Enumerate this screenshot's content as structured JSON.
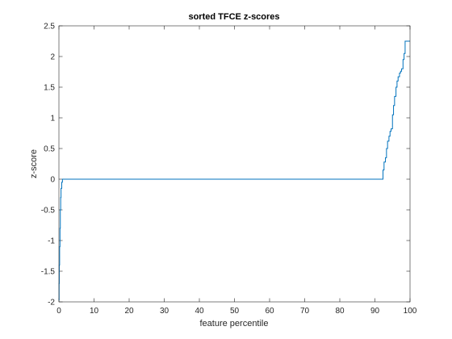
{
  "chart_data": {
    "type": "line",
    "title": "sorted TFCE z-scores",
    "xlabel": "feature percentile",
    "ylabel": "z-score",
    "xlim": [
      0,
      100
    ],
    "ylim": [
      -2,
      2.5
    ],
    "xticks": [
      0,
      10,
      20,
      30,
      40,
      50,
      60,
      70,
      80,
      90,
      100
    ],
    "yticks": [
      -2,
      -1.5,
      -1,
      -0.5,
      0,
      0.5,
      1,
      1.5,
      2,
      2.5
    ],
    "xtick_labels": [
      "0",
      "10",
      "20",
      "30",
      "40",
      "50",
      "60",
      "70",
      "80",
      "90",
      "100"
    ],
    "ytick_labels": [
      "-2",
      "-1.5",
      "-1",
      "-0.5",
      "0",
      "0.5",
      "1",
      "1.5",
      "2",
      "2.5"
    ],
    "grid": false,
    "series": [
      {
        "color": "#0072BD",
        "x": [
          0,
          0.05,
          0.1,
          0.2,
          0.3,
          0.4,
          0.5,
          0.6,
          0.8,
          1.0,
          92.0,
          92.3,
          92.6,
          93.0,
          93.3,
          93.6,
          94.0,
          94.3,
          94.6,
          95.0,
          95.3,
          95.6,
          96.0,
          96.3,
          96.6,
          97.0,
          97.3,
          97.6,
          98.0,
          98.3,
          98.6,
          99.0,
          99.5,
          100
        ],
        "y": [
          -1.97,
          -1.7,
          -1.4,
          -1.1,
          -0.8,
          -0.5,
          -0.3,
          -0.15,
          -0.05,
          0,
          0,
          0.15,
          0.28,
          0.35,
          0.5,
          0.62,
          0.7,
          0.78,
          0.82,
          1.05,
          1.2,
          1.35,
          1.5,
          1.6,
          1.67,
          1.73,
          1.76,
          1.8,
          1.95,
          2.05,
          2.25,
          2.25,
          2.25,
          2.25
        ]
      }
    ]
  }
}
